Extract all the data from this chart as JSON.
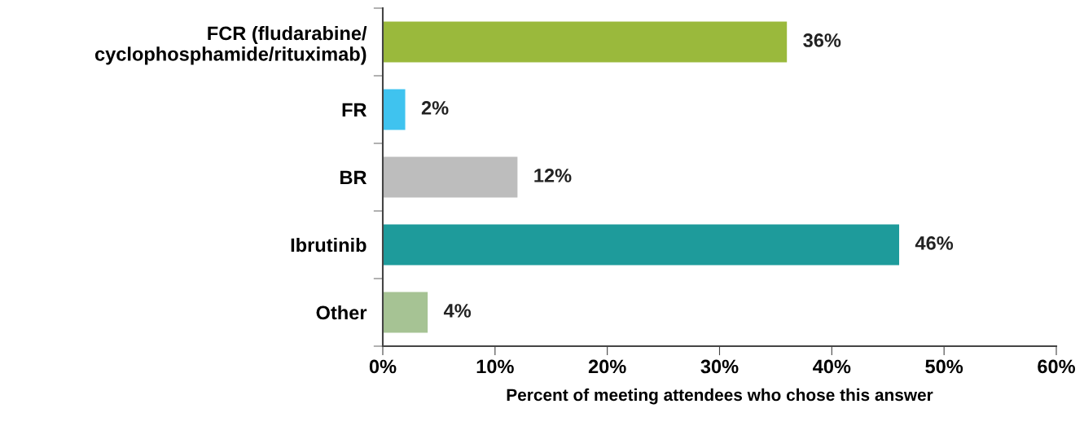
{
  "chart_data": {
    "type": "bar",
    "orientation": "horizontal",
    "xlabel": "Percent of meeting attendees who chose this answer",
    "categories": [
      "FCR (fludarabine/\ncyclophosphamide/rituximab)",
      "FR",
      "BR",
      "Ibrutinib",
      "Other"
    ],
    "values": [
      36,
      2,
      12,
      46,
      4
    ],
    "colors": [
      "#9ab93c",
      "#3fc3ef",
      "#bdbdbd",
      "#1e9b9b",
      "#a6c394"
    ],
    "value_labels": [
      "36%",
      "2%",
      "12%",
      "46%",
      "4%"
    ],
    "xlim": [
      0,
      60
    ],
    "xticks": [
      {
        "value": 0,
        "label": "0%"
      },
      {
        "value": 10,
        "label": "10%"
      },
      {
        "value": 20,
        "label": "20%"
      },
      {
        "value": 30,
        "label": "30%"
      },
      {
        "value": 40,
        "label": "40%"
      },
      {
        "value": 50,
        "label": "50%"
      },
      {
        "value": 60,
        "label": "60%"
      }
    ],
    "grid": false
  }
}
